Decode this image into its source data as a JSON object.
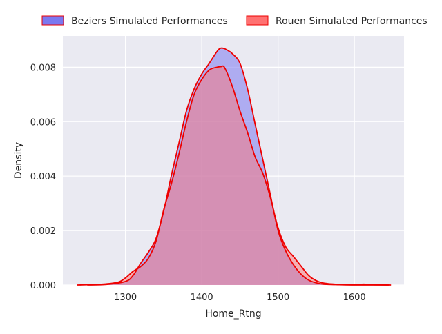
{
  "chart_data": {
    "type": "area",
    "xlabel": "Home_Rtng",
    "ylabel": "Density",
    "xlim": [
      1218,
      1665
    ],
    "ylim": [
      0,
      0.00915
    ],
    "xticks": [
      "1300",
      "1400",
      "1500",
      "1600"
    ],
    "yticks": [
      "0.000",
      "0.002",
      "0.004",
      "0.006",
      "0.008"
    ],
    "grid": true,
    "background": "#EAEAF2",
    "legend": {
      "placement": "top-center"
    },
    "series": [
      {
        "name": "Beziers Simulated Performances",
        "fill_color": "#7B78F0",
        "line_color": "#EE0000",
        "x": [
          1250,
          1275,
          1300,
          1310,
          1320,
          1330,
          1340,
          1350,
          1360,
          1370,
          1380,
          1390,
          1400,
          1410,
          1420,
          1425,
          1430,
          1435,
          1440,
          1450,
          1460,
          1470,
          1480,
          1490,
          1500,
          1510,
          1520,
          1530,
          1540,
          1550,
          1560,
          1580,
          1600,
          1625,
          1645
        ],
        "y": [
          0,
          2e-05,
          0.00013,
          0.00035,
          0.0008,
          0.0012,
          0.0017,
          0.0027,
          0.004,
          0.0052,
          0.0064,
          0.0072,
          0.00775,
          0.00815,
          0.00858,
          0.0087,
          0.00868,
          0.0086,
          0.0085,
          0.00815,
          0.0072,
          0.0059,
          0.0046,
          0.0033,
          0.002,
          0.00125,
          0.00075,
          0.0004,
          0.00018,
          8e-05,
          3e-05,
          1e-05,
          0,
          0,
          0
        ]
      },
      {
        "name": "Rouen Simulated Performances",
        "fill_color": "#FF7171",
        "line_color": "#EE0000",
        "x": [
          1237,
          1270,
          1290,
          1300,
          1310,
          1320,
          1330,
          1340,
          1350,
          1360,
          1370,
          1380,
          1390,
          1400,
          1410,
          1420,
          1425,
          1430,
          1440,
          1450,
          1460,
          1470,
          1480,
          1490,
          1500,
          1510,
          1520,
          1530,
          1540,
          1550,
          1560,
          1580,
          1600,
          1612,
          1625,
          1648
        ],
        "y": [
          0,
          3e-05,
          0.0001,
          0.00026,
          0.0005,
          0.00068,
          0.00098,
          0.0016,
          0.00275,
          0.0037,
          0.0048,
          0.006,
          0.007,
          0.00755,
          0.0079,
          0.008,
          0.00802,
          0.00798,
          0.0073,
          0.0064,
          0.0056,
          0.0047,
          0.0041,
          0.0032,
          0.0021,
          0.0014,
          0.00105,
          0.0007,
          0.00035,
          0.00016,
          7e-05,
          2e-05,
          1e-05,
          3e-05,
          1e-05,
          0
        ]
      }
    ]
  }
}
